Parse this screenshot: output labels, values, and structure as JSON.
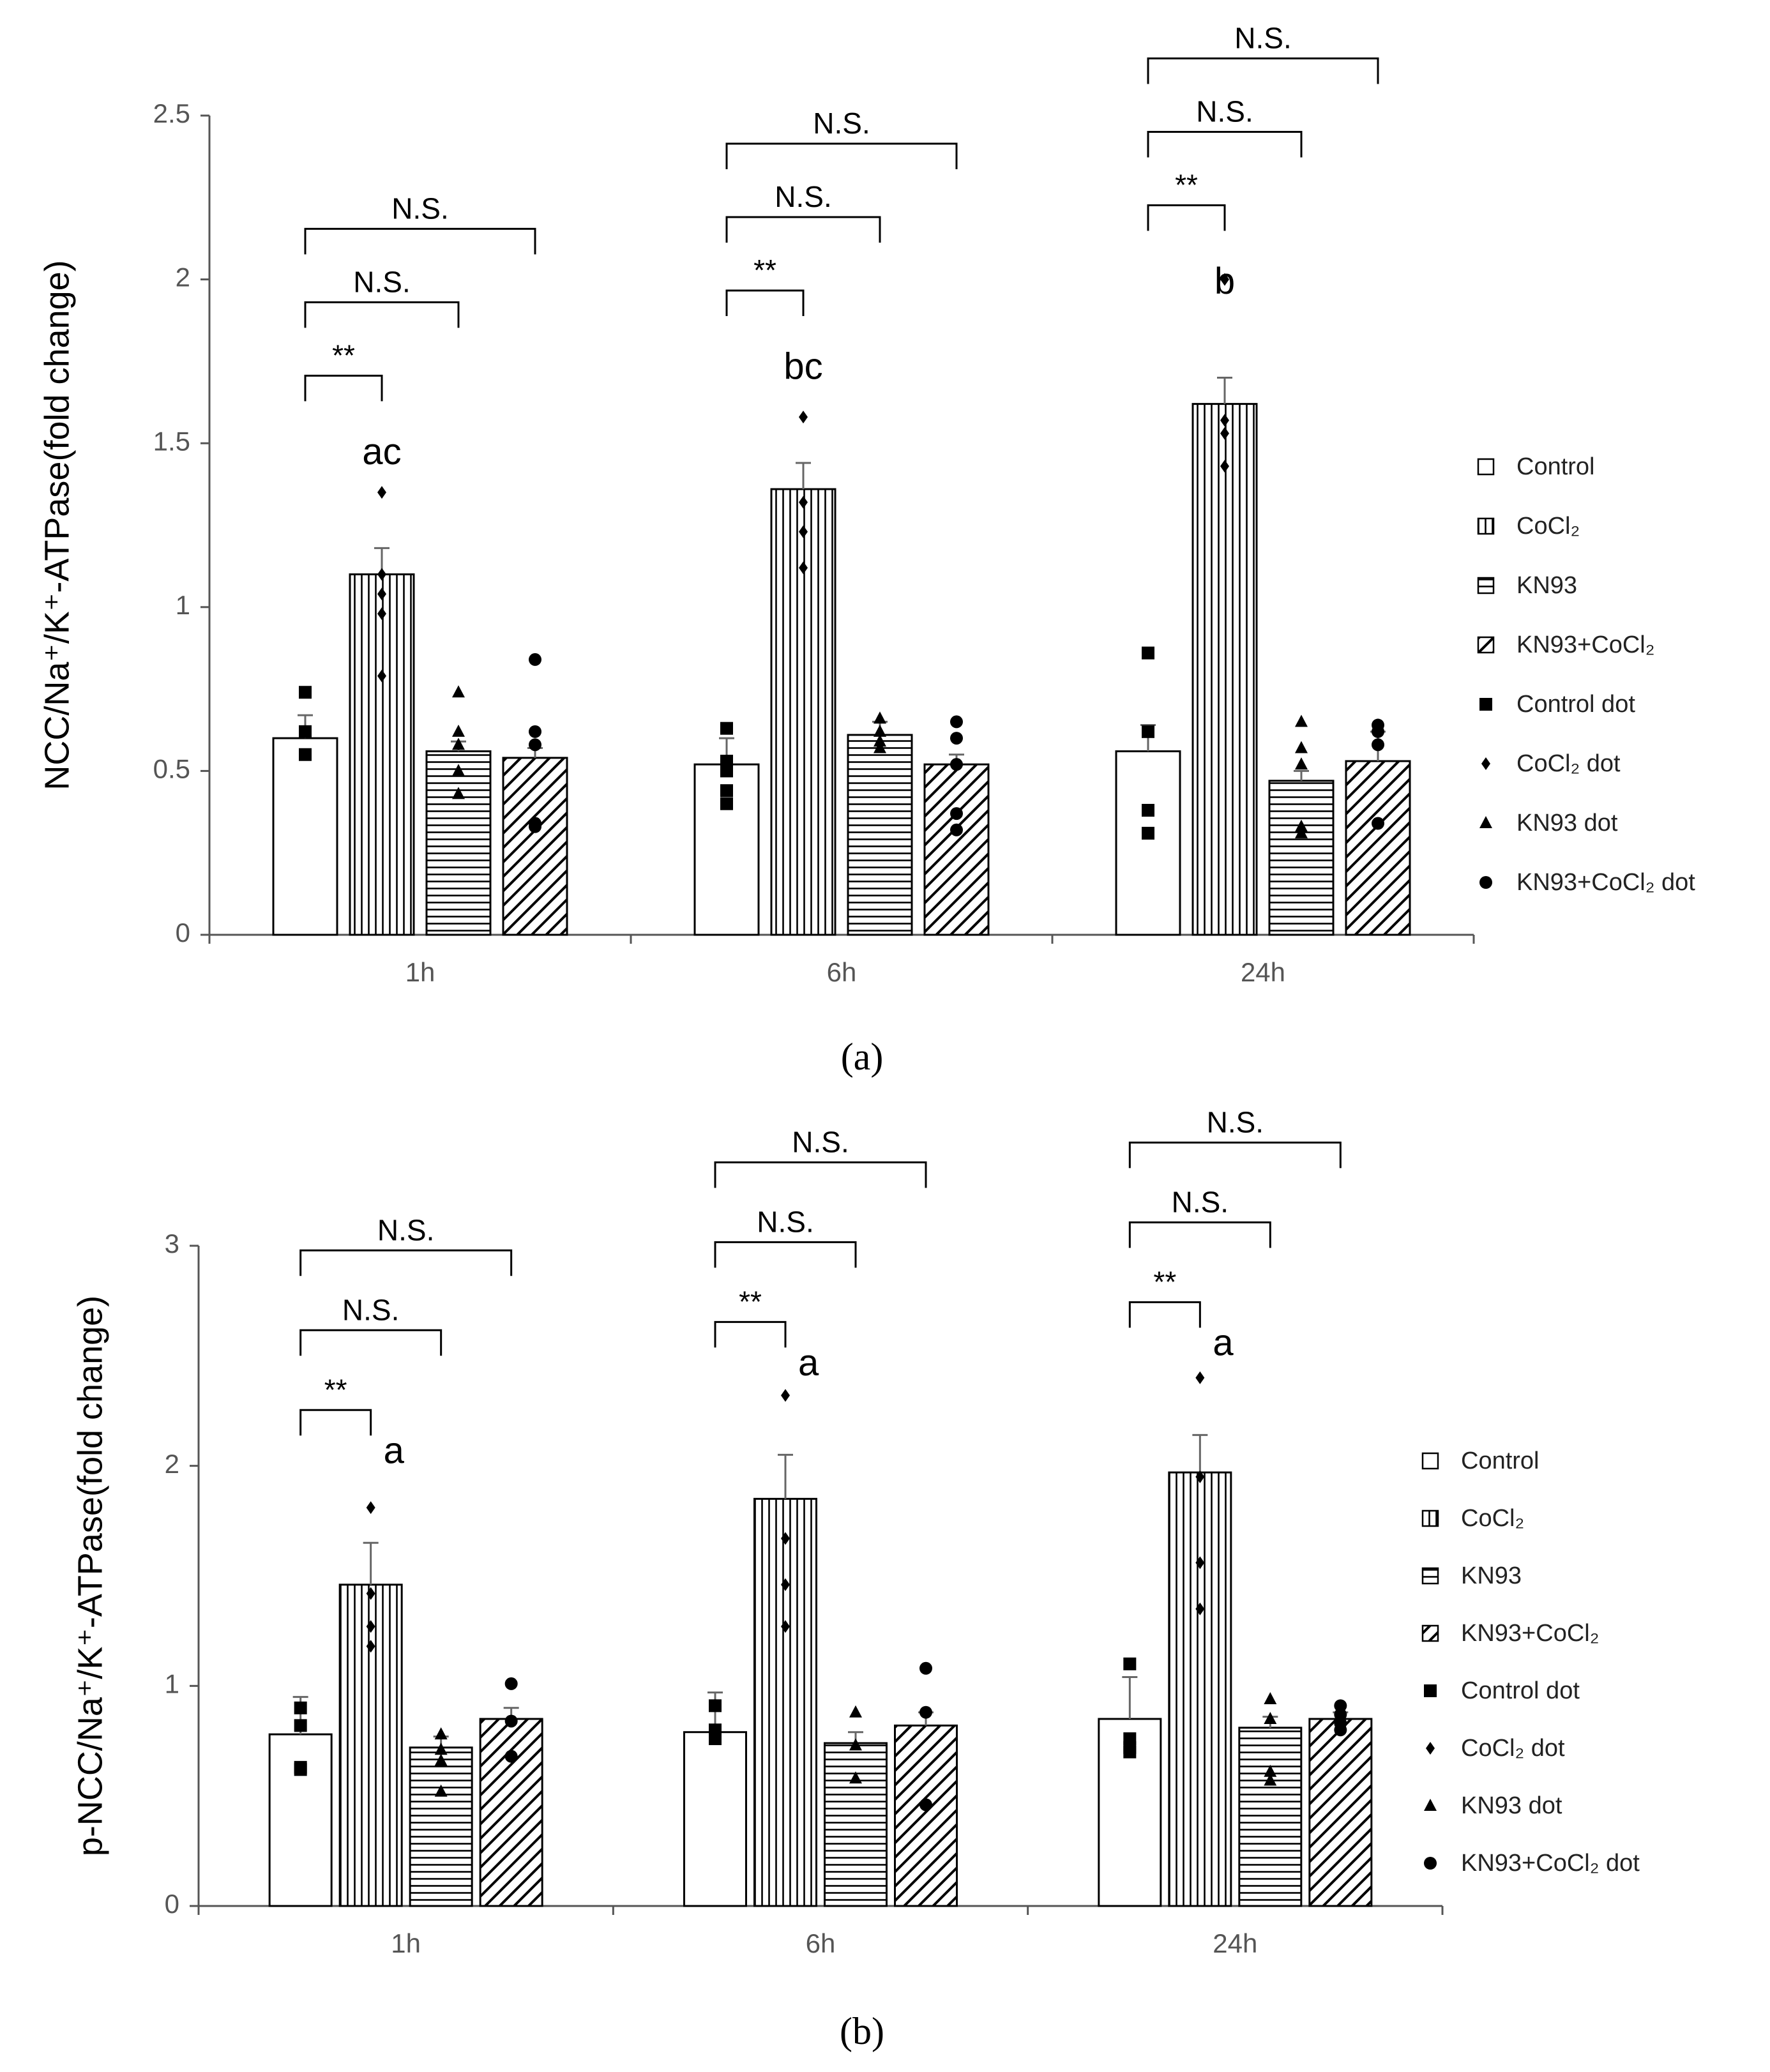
{
  "chart_data": [
    {
      "type": "bar",
      "caption": "(a)",
      "y_label": "NCC/Na⁺/K⁺-ATPase(fold change)",
      "categories": [
        "1h",
        "6h",
        "24h"
      ],
      "ylim": [
        0,
        2.5
      ],
      "yticks": [
        0,
        0.5,
        1,
        1.5,
        2,
        2.5
      ],
      "series": [
        {
          "name": "Control",
          "color": "#000000",
          "pattern": "none",
          "values": [
            0.6,
            0.52,
            0.56
          ],
          "errors": [
            0.07,
            0.08,
            0.08
          ]
        },
        {
          "name": "CoCl₂",
          "color": "#000000",
          "pattern": "vertical",
          "values": [
            1.1,
            1.36,
            1.62
          ],
          "errors": [
            0.08,
            0.08,
            0.08
          ]
        },
        {
          "name": "KN93",
          "color": "#000000",
          "pattern": "horizontal",
          "values": [
            0.56,
            0.61,
            0.47
          ],
          "errors": [
            0.03,
            0.04,
            0.03
          ]
        },
        {
          "name": "KN93+CoCl₂",
          "color": "#000000",
          "pattern": "diagonal",
          "values": [
            0.54,
            0.52,
            0.53
          ],
          "errors": [
            0.03,
            0.03,
            0.09
          ]
        }
      ],
      "dot_series": [
        {
          "name": "Control dot",
          "marker": "square",
          "values": [
            [
              0.74,
              0.62,
              0.55
            ],
            [
              0.63,
              0.53,
              0.5,
              0.44,
              0.4
            ],
            [
              0.86,
              0.62,
              0.38,
              0.31
            ]
          ]
        },
        {
          "name": "CoCl₂ dot",
          "marker": "diamond",
          "values": [
            [
              1.35,
              1.1,
              1.04,
              0.98,
              0.79
            ],
            [
              1.58,
              1.32,
              1.23,
              1.12
            ],
            [
              2.0,
              1.57,
              1.53,
              1.43
            ]
          ]
        },
        {
          "name": "KN93 dot",
          "marker": "triangle",
          "values": [
            [
              0.74,
              0.62,
              0.58,
              0.5,
              0.43
            ],
            [
              0.66,
              0.62,
              0.59,
              0.57
            ],
            [
              0.65,
              0.57,
              0.52,
              0.33,
              0.31
            ]
          ]
        },
        {
          "name": "KN93+CoCl₂ dot",
          "marker": "circle",
          "values": [
            [
              0.84,
              0.62,
              0.58,
              0.34,
              0.33
            ],
            [
              0.65,
              0.6,
              0.52,
              0.37,
              0.32
            ],
            [
              0.64,
              0.62,
              0.58,
              0.34
            ]
          ]
        }
      ],
      "letters": [
        "ac",
        "bc",
        "b"
      ],
      "brackets": [
        [
          "**",
          "N.S.",
          "N.S."
        ],
        [
          "**",
          "N.S.",
          "N.S."
        ],
        [
          "**",
          "N.S.",
          "N.S."
        ]
      ]
    },
    {
      "type": "bar",
      "caption": "(b)",
      "y_label": "p-NCC/Na⁺/K⁺-ATPase(fold change)",
      "categories": [
        "1h",
        "6h",
        "24h"
      ],
      "ylim": [
        0,
        3
      ],
      "yticks": [
        0,
        1,
        2,
        3
      ],
      "series": [
        {
          "name": "Control",
          "color": "#000000",
          "pattern": "none",
          "values": [
            0.78,
            0.79,
            0.85
          ],
          "errors": [
            0.17,
            0.18,
            0.19
          ]
        },
        {
          "name": "CoCl₂",
          "color": "#000000",
          "pattern": "vertical",
          "values": [
            1.46,
            1.85,
            1.97
          ],
          "errors": [
            0.19,
            0.2,
            0.17
          ]
        },
        {
          "name": "KN93",
          "color": "#000000",
          "pattern": "horizontal",
          "values": [
            0.72,
            0.74,
            0.81
          ],
          "errors": [
            0.05,
            0.05,
            0.05
          ]
        },
        {
          "name": "KN93+CoCl₂",
          "color": "#000000",
          "pattern": "diagonal",
          "values": [
            0.85,
            0.82,
            0.85
          ],
          "errors": [
            0.05,
            0.06,
            0.03
          ]
        }
      ],
      "dot_series": [
        {
          "name": "Control dot",
          "marker": "square",
          "values": [
            [
              0.9,
              0.82,
              0.63,
              0.62
            ],
            [
              0.91,
              0.8,
              0.76
            ],
            [
              1.1,
              0.76,
              0.72,
              0.7
            ]
          ]
        },
        {
          "name": "CoCl₂ dot",
          "marker": "diamond",
          "values": [
            [
              1.81,
              1.42,
              1.27,
              1.18
            ],
            [
              2.32,
              1.67,
              1.46,
              1.27
            ],
            [
              2.4,
              1.95,
              1.56,
              1.35
            ]
          ]
        },
        {
          "name": "KN93 dot",
          "marker": "triangle",
          "values": [
            [
              0.78,
              0.71,
              0.66,
              0.52
            ],
            [
              0.88,
              0.73,
              0.58
            ],
            [
              0.94,
              0.85,
              0.61,
              0.57
            ]
          ]
        },
        {
          "name": "KN93+CoCl₂ dot",
          "marker": "circle",
          "values": [
            [
              1.01,
              0.84,
              0.68
            ],
            [
              1.08,
              0.88,
              0.46
            ],
            [
              0.91,
              0.87,
              0.83,
              0.8
            ]
          ]
        }
      ],
      "letters": [
        "a",
        "a",
        "a"
      ],
      "brackets": [
        [
          "**",
          "N.S.",
          "N.S."
        ],
        [
          "**",
          "N.S.",
          "N.S."
        ],
        [
          "**",
          "N.S.",
          "N.S."
        ]
      ]
    }
  ]
}
